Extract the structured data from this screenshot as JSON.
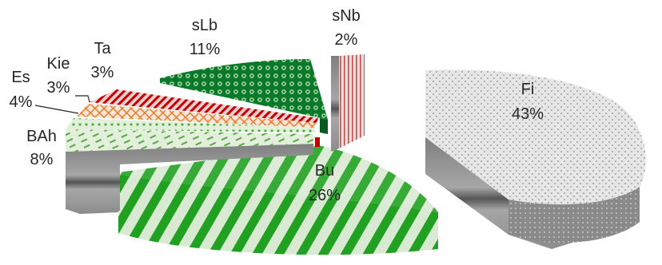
{
  "chart_data": {
    "type": "pie",
    "style": "3d-exploded",
    "title": "",
    "legend": "none",
    "slices": [
      {
        "name": "Fi",
        "value": 43,
        "label": "43%",
        "color": "#bfbfbf",
        "pattern": "dots-gray"
      },
      {
        "name": "Bu",
        "value": 26,
        "label": "26%",
        "color": "#2ca02c",
        "pattern": "diagonal-green"
      },
      {
        "name": "BAh",
        "value": 8,
        "label": "8%",
        "color": "#70ad47",
        "pattern": "dashed-green"
      },
      {
        "name": "Es",
        "value": 4,
        "label": "4%",
        "color": "#7cc36a",
        "pattern": "dotted-green"
      },
      {
        "name": "Kie",
        "value": 3,
        "label": "3%",
        "color": "#ed7d31",
        "pattern": "grid-orange"
      },
      {
        "name": "Ta",
        "value": 3,
        "label": "3%",
        "color": "#c00000",
        "pattern": "diagonal-red"
      },
      {
        "name": "sLb",
        "value": 11,
        "label": "11%",
        "color": "#00802b",
        "pattern": "circles-green"
      },
      {
        "name": "sNb",
        "value": 2,
        "label": "2%",
        "color": "#c0504d",
        "pattern": "vertical-red"
      }
    ]
  }
}
